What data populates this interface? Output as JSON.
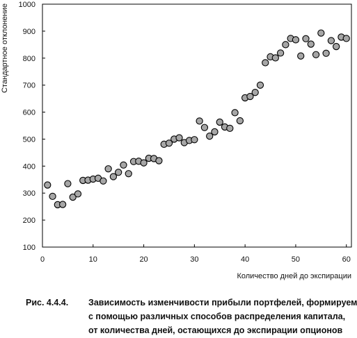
{
  "chart_data": {
    "type": "scatter",
    "xlabel": "Количество дней  до экспирации",
    "ylabel": "Стандартное отклонение",
    "xlim": [
      0,
      61
    ],
    "ylim": [
      100,
      1000
    ],
    "xticks": [
      0,
      10,
      20,
      30,
      40,
      50,
      60
    ],
    "yticks": [
      100,
      200,
      300,
      400,
      500,
      600,
      700,
      800,
      900,
      1000
    ],
    "grid": false,
    "marker_color": "#a6a6a6",
    "x": [
      1,
      2,
      3,
      4,
      5,
      6,
      7,
      8,
      9,
      10,
      11,
      12,
      13,
      14,
      15,
      16,
      17,
      18,
      19,
      20,
      21,
      22,
      23,
      24,
      25,
      26,
      27,
      28,
      29,
      30,
      31,
      32,
      33,
      34,
      35,
      36,
      37,
      38,
      39,
      40,
      41,
      42,
      43,
      44,
      45,
      46,
      47,
      48,
      49,
      50,
      51,
      52,
      53,
      54,
      55,
      56,
      57,
      58,
      59,
      60
    ],
    "y": [
      330,
      288,
      257,
      258,
      335,
      285,
      297,
      347,
      348,
      352,
      355,
      345,
      390,
      361,
      377,
      404,
      372,
      417,
      418,
      412,
      429,
      428,
      420,
      481,
      485,
      500,
      505,
      487,
      495,
      498,
      567,
      543,
      511,
      527,
      563,
      545,
      540,
      598,
      568,
      653,
      658,
      673,
      700,
      783,
      805,
      801,
      819,
      850,
      873,
      868,
      808,
      872,
      852,
      813,
      893,
      818,
      865,
      843,
      878,
      873
    ]
  },
  "caption": {
    "figure_number": "Рис. 4.4.4.",
    "lines": [
      "Зависимость изменчивости прибыли портфелей, формируемых",
      "с помощью различных способов распределения капитала,",
      "от количества дней, остающихся до экспирации опционов"
    ]
  }
}
